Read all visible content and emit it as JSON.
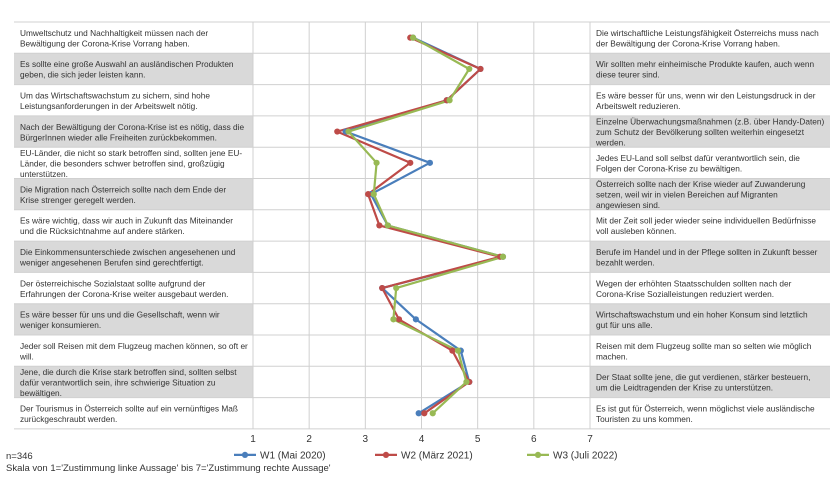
{
  "chart_data": {
    "type": "line",
    "orientation": "vertical-profile",
    "xlim": [
      1,
      7
    ],
    "x_ticks": [
      "1",
      "2",
      "3",
      "4",
      "5",
      "6",
      "7"
    ],
    "grid": true,
    "legend_position": "bottom",
    "rows": [
      {
        "left": [
          "Umweltschutz und Nachhaltigkeit müssen nach der",
          "Bewältigung der Corona-Krise Vorrang haben."
        ],
        "right": [
          "Die wirtschaftliche Leistungsfähigkeit Österreichs muss nach",
          "der Bewältigung der Corona-Krise Vorrang haben."
        ]
      },
      {
        "left": [
          "Es sollte eine große Auswahl an ausländischen Produkten",
          "geben, die sich jeder leisten kann."
        ],
        "right": [
          "Wir sollten mehr einheimische Produkte kaufen, auch wenn",
          "diese teurer sind."
        ]
      },
      {
        "left": [
          "Um das Wirtschaftswachstum zu sichern, sind hohe",
          "Leistungsanforderungen in der Arbeitswelt nötig."
        ],
        "right": [
          "Es wäre besser für uns, wenn wir den Leistungsdruck in der",
          "Arbeitswelt reduzieren."
        ]
      },
      {
        "left": [
          "Nach der Bewältigung der Corona-Krise ist es nötig, dass die",
          "BürgerInnen wieder alle Freiheiten zurückbekommen."
        ],
        "right": [
          "Einzelne Überwachungsmaßnahmen (z.B. über Handy-Daten)",
          "zum Schutz der Bevölkerung sollten weiterhin eingesetzt",
          "werden."
        ]
      },
      {
        "left": [
          "EU-Länder, die nicht so stark betroffen sind, sollten jene EU-",
          "Länder, die besonders schwer betroffen sind, großzügig",
          "unterstützen."
        ],
        "right": [
          "Jedes EU-Land soll selbst dafür verantwortlich sein, die",
          "Folgen der Corona-Krise zu bewältigen."
        ]
      },
      {
        "left": [
          "Die Migration nach Österreich sollte nach dem Ende der",
          "Krise strenger geregelt werden."
        ],
        "right": [
          "Österreich sollte nach der Krise wieder auf Zuwanderung",
          "setzen, weil wir in vielen Bereichen auf Migranten",
          "angewiesen sind."
        ]
      },
      {
        "left": [
          "Es wäre wichtig, dass wir auch in Zukunft das Miteinander",
          "und die Rücksichtnahme auf andere stärken."
        ],
        "right": [
          "Mit der Zeit soll jeder wieder seine individuellen Bedürfnisse",
          "voll ausleben können."
        ]
      },
      {
        "left": [
          "Die Einkommensunterschiede zwischen angesehenen und",
          "weniger angesehenen Berufen sind gerechtfertigt."
        ],
        "right": [
          "Berufe im Handel und in der Pflege sollten in Zukunft besser",
          "bezahlt werden."
        ]
      },
      {
        "left": [
          "Der österreichische Sozialstaat sollte aufgrund der",
          "Erfahrungen der Corona-Krise weiter ausgebaut werden."
        ],
        "right": [
          "Wegen der erhöhten Staatsschulden sollten nach der",
          "Corona-Krise Sozialleistungen reduziert werden."
        ]
      },
      {
        "left": [
          "Es wäre besser für uns und die Gesellschaft, wenn wir",
          "weniger konsumieren."
        ],
        "right": [
          "Wirtschaftswachstum und ein hoher Konsum sind letztlich",
          "gut für uns alle."
        ]
      },
      {
        "left": [
          "Jeder soll Reisen mit dem Flugzeug machen können, so oft er",
          "will."
        ],
        "right": [
          "Reisen mit dem Flugzeug sollte man so selten wie möglich",
          "machen."
        ]
      },
      {
        "left": [
          "Jene, die durch die Krise stark betroffen sind, sollten selbst",
          "dafür verantwortlich sein, ihre schwierige Situation zu",
          "bewältigen."
        ],
        "right": [
          "Der Staat sollte jene, die gut verdienen, stärker besteuern,",
          "um die Leidtragenden der Krise zu unterstützen."
        ]
      },
      {
        "left": [
          "Der Tourismus in Österreich sollte auf ein vernünftiges Maß",
          "zurückgeschraubt werden."
        ],
        "right": [
          "Es ist gut für Österreich, wenn möglichst viele ausländische",
          "Touristen zu uns kommen."
        ]
      }
    ],
    "series": [
      {
        "name": "W1 (Mai 2020)",
        "color": "#4a7ebb",
        "values": [
          3.85,
          5.05,
          4.45,
          2.65,
          4.15,
          3.1,
          3.4,
          5.45,
          3.3,
          3.9,
          4.7,
          4.85,
          3.95
        ]
      },
      {
        "name": "W2 (März 2021)",
        "color": "#be4b48",
        "values": [
          3.8,
          5.05,
          4.45,
          2.5,
          3.8,
          3.05,
          3.25,
          5.4,
          3.3,
          3.6,
          4.55,
          4.85,
          4.05
        ]
      },
      {
        "name": "W3 (Juli 2022)",
        "color": "#98b954",
        "values": [
          3.85,
          4.85,
          4.5,
          2.7,
          3.2,
          3.15,
          3.4,
          5.45,
          3.55,
          3.5,
          4.65,
          4.8,
          4.2
        ]
      }
    ]
  },
  "footer": {
    "n": "n=346",
    "scale": "Skala von 1='Zustimmung linke Aussage' bis 7='Zustimmung rechte Aussage'"
  }
}
